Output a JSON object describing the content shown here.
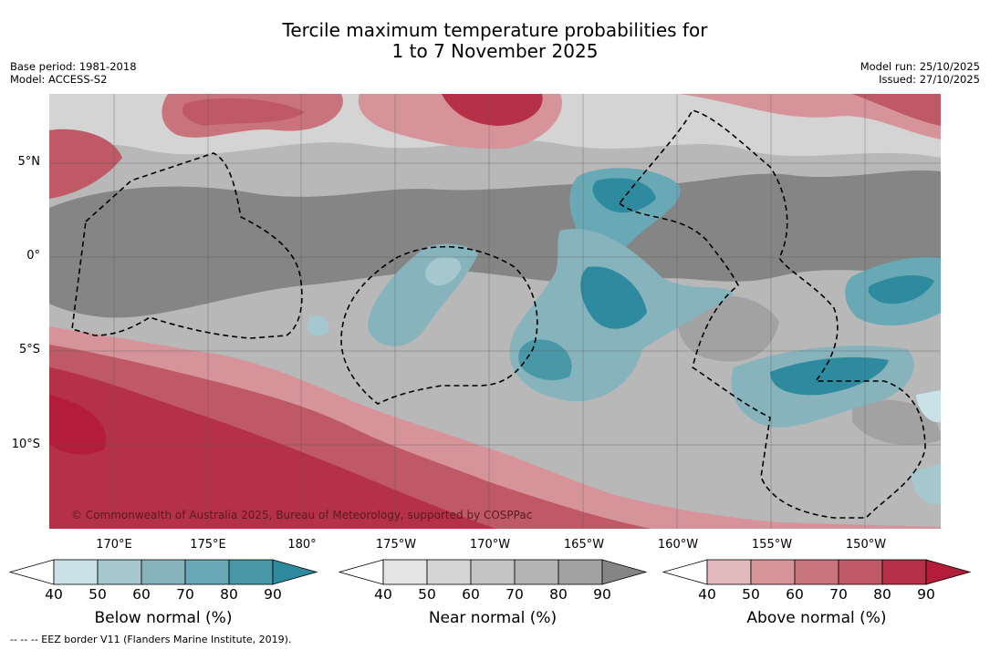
{
  "title": {
    "line1": "Tercile maximum temperature probabilities for",
    "line2": "1 to 7 November 2025"
  },
  "meta": {
    "base_period": "Base period: 1981-2018",
    "model": "Model: ACCESS-S2",
    "model_run": "Model run: 25/10/2025",
    "issued": "Issued: 27/10/2025"
  },
  "map": {
    "latitude_labels": [
      "5°N",
      "0°",
      "5°S",
      "10°S"
    ],
    "longitude_labels": [
      "170°E",
      "175°E",
      "180°",
      "175°W",
      "170°W",
      "165°W",
      "160°W",
      "155°W",
      "150°W"
    ],
    "copyright": "© Commonwealth of Australia 2025, Bureau of Meteorology, supported by COSPPac"
  },
  "legend": {
    "below": {
      "label": "Below normal (%)",
      "ticks": [
        "40",
        "50",
        "60",
        "70",
        "80",
        "90"
      ],
      "colors": [
        "#ffffff",
        "#c8e2e8",
        "#a5c8cf",
        "#87b3bd",
        "#69a8b5",
        "#4898a8",
        "#2e8a9e"
      ]
    },
    "near": {
      "label": "Near normal (%)",
      "ticks": [
        "40",
        "50",
        "60",
        "70",
        "80",
        "90"
      ],
      "colors": [
        "#ffffff",
        "#e4e4e4",
        "#d4d4d4",
        "#c4c4c4",
        "#b4b4b4",
        "#a2a2a2",
        "#858585"
      ]
    },
    "above": {
      "label": "Above normal (%)",
      "ticks": [
        "40",
        "50",
        "60",
        "70",
        "80",
        "90"
      ],
      "colors": [
        "#ffffff",
        "#e2b9bd",
        "#d6949a",
        "#c9737c",
        "#bf5966",
        "#b53147",
        "#b41d3a"
      ]
    }
  },
  "footnote": "--  --  -- EEZ border V11 (Flanders Marine Institute, 2019)."
}
